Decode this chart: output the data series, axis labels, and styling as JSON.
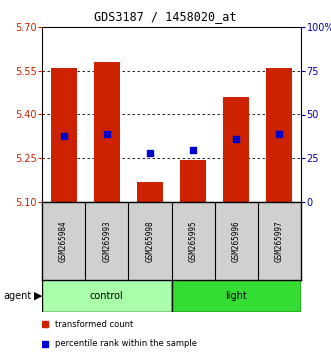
{
  "title": "GDS3187 / 1458020_at",
  "samples": [
    "GSM265984",
    "GSM265993",
    "GSM265998",
    "GSM265995",
    "GSM265996",
    "GSM265997"
  ],
  "group_colors": {
    "control": "#AAFFAA",
    "light": "#33DD33"
  },
  "bar_bottom": 5.1,
  "bar_tops": [
    5.56,
    5.58,
    5.17,
    5.245,
    5.46,
    5.56
  ],
  "blue_y": [
    5.325,
    5.333,
    5.268,
    5.278,
    5.316,
    5.333
  ],
  "ylim_left": [
    5.1,
    5.7
  ],
  "ylim_right": [
    0,
    100
  ],
  "yticks_left": [
    5.1,
    5.25,
    5.4,
    5.55,
    5.7
  ],
  "yticks_right": [
    0,
    25,
    50,
    75,
    100
  ],
  "bar_color": "#CC2200",
  "blue_color": "#0000CC",
  "bg_color": "#FFFFFF",
  "label_color_left": "#CC2200",
  "label_color_right": "#0000AA",
  "legend_items": [
    "transformed count",
    "percentile rank within the sample"
  ],
  "agent_label": "agent",
  "bar_width": 0.6
}
